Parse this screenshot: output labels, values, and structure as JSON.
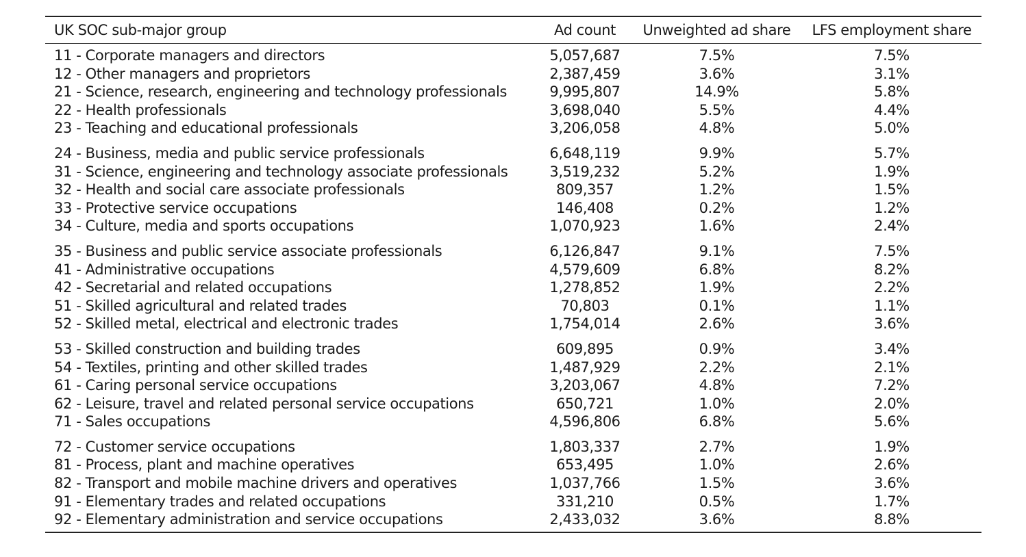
{
  "table": {
    "headers": [
      "UK SOC sub-major group",
      "Ad count",
      "Unweighted ad share",
      "LFS employment share"
    ],
    "groups": [
      [
        {
          "group": "11 - Corporate managers and directors",
          "ad_count": "5,057,687",
          "unweighted_share": "7.5%",
          "lfs_share": "7.5%"
        },
        {
          "group": "12 - Other managers and proprietors",
          "ad_count": "2,387,459",
          "unweighted_share": "3.6%",
          "lfs_share": "3.1%"
        },
        {
          "group": "21 - Science, research, engineering and technology professionals",
          "ad_count": "9,995,807",
          "unweighted_share": "14.9%",
          "lfs_share": "5.8%"
        },
        {
          "group": "22 - Health professionals",
          "ad_count": "3,698,040",
          "unweighted_share": "5.5%",
          "lfs_share": "4.4%"
        },
        {
          "group": "23 - Teaching and educational professionals",
          "ad_count": "3,206,058",
          "unweighted_share": "4.8%",
          "lfs_share": "5.0%"
        }
      ],
      [
        {
          "group": "24 - Business, media and public service professionals",
          "ad_count": "6,648,119",
          "unweighted_share": "9.9%",
          "lfs_share": "5.7%"
        },
        {
          "group": "31 - Science, engineering and technology associate professionals",
          "ad_count": "3,519,232",
          "unweighted_share": "5.2%",
          "lfs_share": "1.9%"
        },
        {
          "group": "32 - Health and social care associate professionals",
          "ad_count": "809,357",
          "unweighted_share": "1.2%",
          "lfs_share": "1.5%"
        },
        {
          "group": "33 - Protective service occupations",
          "ad_count": "146,408",
          "unweighted_share": "0.2%",
          "lfs_share": "1.2%"
        },
        {
          "group": "34 - Culture, media and sports occupations",
          "ad_count": "1,070,923",
          "unweighted_share": "1.6%",
          "lfs_share": "2.4%"
        }
      ],
      [
        {
          "group": "35 - Business and public service associate professionals",
          "ad_count": "6,126,847",
          "unweighted_share": "9.1%",
          "lfs_share": "7.5%"
        },
        {
          "group": "41 - Administrative occupations",
          "ad_count": "4,579,609",
          "unweighted_share": "6.8%",
          "lfs_share": "8.2%"
        },
        {
          "group": "42 - Secretarial and related occupations",
          "ad_count": "1,278,852",
          "unweighted_share": "1.9%",
          "lfs_share": "2.2%"
        },
        {
          "group": "51 - Skilled agricultural and related trades",
          "ad_count": "70,803",
          "unweighted_share": "0.1%",
          "lfs_share": "1.1%"
        },
        {
          "group": "52 - Skilled metal, electrical and electronic trades",
          "ad_count": "1,754,014",
          "unweighted_share": "2.6%",
          "lfs_share": "3.6%"
        }
      ],
      [
        {
          "group": "53 - Skilled construction and building trades",
          "ad_count": "609,895",
          "unweighted_share": "0.9%",
          "lfs_share": "3.4%"
        },
        {
          "group": "54 - Textiles, printing and other skilled trades",
          "ad_count": "1,487,929",
          "unweighted_share": "2.2%",
          "lfs_share": "2.1%"
        },
        {
          "group": "61 - Caring personal service occupations",
          "ad_count": "3,203,067",
          "unweighted_share": "4.8%",
          "lfs_share": "7.2%"
        },
        {
          "group": "62 - Leisure, travel and related personal service occupations",
          "ad_count": "650,721",
          "unweighted_share": "1.0%",
          "lfs_share": "2.0%"
        },
        {
          "group": "71 - Sales occupations",
          "ad_count": "4,596,806",
          "unweighted_share": "6.8%",
          "lfs_share": "5.6%"
        }
      ],
      [
        {
          "group": "72 - Customer service occupations",
          "ad_count": "1,803,337",
          "unweighted_share": "2.7%",
          "lfs_share": "1.9%"
        },
        {
          "group": "81 - Process, plant and machine operatives",
          "ad_count": "653,495",
          "unweighted_share": "1.0%",
          "lfs_share": "2.6%"
        },
        {
          "group": "82 - Transport and mobile machine drivers and operatives",
          "ad_count": "1,037,766",
          "unweighted_share": "1.5%",
          "lfs_share": "3.6%"
        },
        {
          "group": "91 - Elementary trades and related occupations",
          "ad_count": "331,210",
          "unweighted_share": "0.5%",
          "lfs_share": "1.7%"
        },
        {
          "group": "92 - Elementary administration and service occupations",
          "ad_count": "2,433,032",
          "unweighted_share": "3.6%",
          "lfs_share": "8.8%"
        }
      ]
    ]
  }
}
